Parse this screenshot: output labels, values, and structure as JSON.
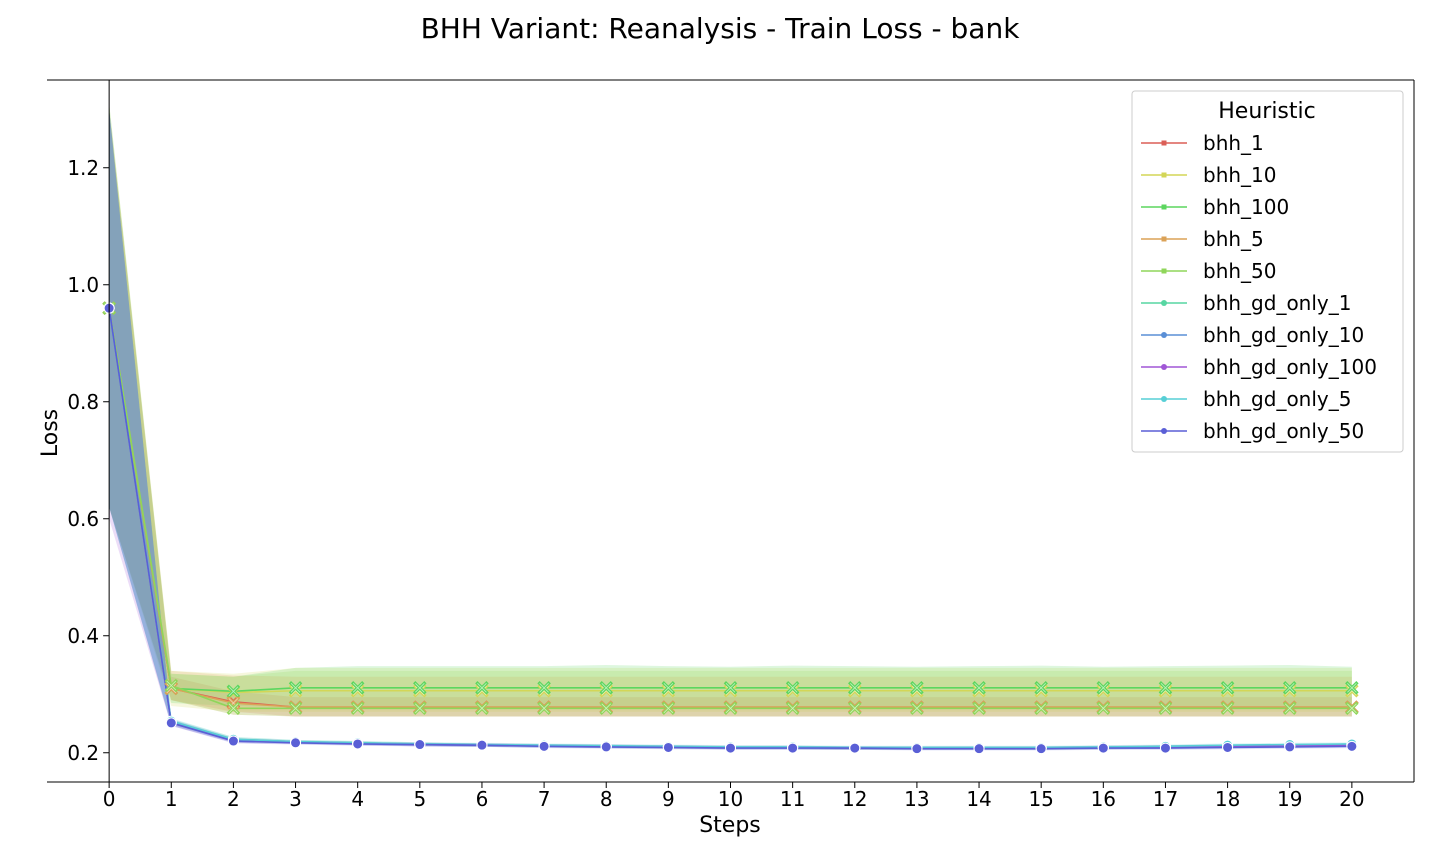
{
  "chart_data": {
    "type": "line",
    "title": "BHH Variant: Reanalysis - Train Loss - bank",
    "xlabel": "Steps",
    "ylabel": "Loss",
    "xlim": [
      -1,
      21
    ],
    "ylim": [
      0.15,
      1.35
    ],
    "x": [
      0,
      1,
      2,
      3,
      4,
      5,
      6,
      7,
      8,
      9,
      10,
      11,
      12,
      13,
      14,
      15,
      16,
      17,
      18,
      19,
      20
    ],
    "x_ticks": [
      "0",
      "1",
      "2",
      "3",
      "4",
      "5",
      "6",
      "7",
      "8",
      "9",
      "10",
      "11",
      "12",
      "13",
      "14",
      "15",
      "16",
      "17",
      "18",
      "19",
      "20"
    ],
    "y_ticks": [
      {
        "value": 0.2,
        "label": "0.2"
      },
      {
        "value": 0.4,
        "label": "0.4"
      },
      {
        "value": 0.6,
        "label": "0.6"
      },
      {
        "value": 0.8,
        "label": "0.8"
      },
      {
        "value": 1.0,
        "label": "1.0"
      },
      {
        "value": 1.2,
        "label": "1.2"
      }
    ],
    "grid": false,
    "legend": {
      "title": "Heuristic",
      "position": "top-right"
    },
    "series": [
      {
        "name": "bhh_1",
        "color": "#db5f57",
        "marker": "x",
        "values": [
          0.96,
          0.31,
          0.287,
          0.278,
          0.278,
          0.278,
          0.278,
          0.278,
          0.278,
          0.278,
          0.278,
          0.278,
          0.278,
          0.278,
          0.278,
          0.278,
          0.278,
          0.278,
          0.278,
          0.278,
          0.278
        ],
        "band_lower": [
          0.62,
          0.29,
          0.27,
          0.262,
          0.262,
          0.262,
          0.262,
          0.262,
          0.262,
          0.262,
          0.262,
          0.262,
          0.262,
          0.262,
          0.262,
          0.262,
          0.262,
          0.262,
          0.262,
          0.262,
          0.262
        ],
        "band_upper": [
          1.3,
          0.33,
          0.305,
          0.295,
          0.295,
          0.295,
          0.295,
          0.295,
          0.295,
          0.295,
          0.295,
          0.295,
          0.295,
          0.295,
          0.295,
          0.295,
          0.295,
          0.295,
          0.295,
          0.295,
          0.295
        ]
      },
      {
        "name": "bhh_10",
        "color": "#d3d657",
        "marker": "x",
        "values": [
          0.96,
          0.31,
          0.303,
          0.306,
          0.306,
          0.306,
          0.306,
          0.306,
          0.306,
          0.306,
          0.306,
          0.306,
          0.306,
          0.306,
          0.306,
          0.306,
          0.306,
          0.306,
          0.306,
          0.306,
          0.306
        ],
        "band_lower": [
          0.62,
          0.28,
          0.27,
          0.27,
          0.27,
          0.27,
          0.27,
          0.27,
          0.27,
          0.27,
          0.27,
          0.27,
          0.27,
          0.27,
          0.27,
          0.27,
          0.27,
          0.27,
          0.27,
          0.27,
          0.27
        ],
        "band_upper": [
          1.31,
          0.34,
          0.335,
          0.345,
          0.345,
          0.345,
          0.345,
          0.345,
          0.345,
          0.345,
          0.345,
          0.345,
          0.345,
          0.345,
          0.345,
          0.345,
          0.345,
          0.345,
          0.345,
          0.345,
          0.345
        ]
      },
      {
        "name": "bhh_100",
        "color": "#5cd65f",
        "marker": "x",
        "values": [
          0.96,
          0.31,
          0.305,
          0.311,
          0.311,
          0.311,
          0.311,
          0.311,
          0.311,
          0.311,
          0.311,
          0.311,
          0.311,
          0.311,
          0.311,
          0.311,
          0.311,
          0.311,
          0.311,
          0.311,
          0.311
        ],
        "band_lower": [
          0.62,
          0.285,
          0.28,
          0.278,
          0.278,
          0.278,
          0.278,
          0.278,
          0.278,
          0.278,
          0.278,
          0.278,
          0.278,
          0.278,
          0.278,
          0.278,
          0.278,
          0.278,
          0.278,
          0.278,
          0.278
        ],
        "band_upper": [
          1.31,
          0.335,
          0.33,
          0.345,
          0.348,
          0.348,
          0.348,
          0.348,
          0.35,
          0.348,
          0.347,
          0.349,
          0.348,
          0.347,
          0.348,
          0.349,
          0.347,
          0.348,
          0.349,
          0.35,
          0.347
        ]
      },
      {
        "name": "bhh_5",
        "color": "#dba257",
        "marker": "x",
        "values": [
          0.96,
          0.31,
          0.285,
          0.278,
          0.278,
          0.278,
          0.278,
          0.278,
          0.278,
          0.278,
          0.278,
          0.278,
          0.278,
          0.278,
          0.278,
          0.278,
          0.278,
          0.278,
          0.278,
          0.278,
          0.278
        ],
        "band_lower": [
          0.62,
          0.29,
          0.265,
          0.262,
          0.262,
          0.262,
          0.262,
          0.262,
          0.262,
          0.262,
          0.262,
          0.262,
          0.262,
          0.262,
          0.262,
          0.262,
          0.262,
          0.262,
          0.262,
          0.262,
          0.262
        ],
        "band_upper": [
          1.3,
          0.34,
          0.332,
          0.33,
          0.33,
          0.33,
          0.33,
          0.33,
          0.33,
          0.33,
          0.33,
          0.33,
          0.33,
          0.33,
          0.33,
          0.33,
          0.33,
          0.33,
          0.33,
          0.33,
          0.33
        ]
      },
      {
        "name": "bhh_50",
        "color": "#8fd65a",
        "marker": "x",
        "values": [
          0.96,
          0.315,
          0.276,
          0.276,
          0.276,
          0.276,
          0.276,
          0.276,
          0.276,
          0.276,
          0.276,
          0.276,
          0.276,
          0.276,
          0.276,
          0.276,
          0.276,
          0.276,
          0.276,
          0.276,
          0.276
        ],
        "band_lower": [
          0.62,
          0.29,
          0.265,
          0.262,
          0.262,
          0.262,
          0.262,
          0.262,
          0.262,
          0.262,
          0.262,
          0.262,
          0.262,
          0.262,
          0.262,
          0.262,
          0.262,
          0.262,
          0.262,
          0.262,
          0.262
        ],
        "band_upper": [
          1.3,
          0.335,
          0.33,
          0.34,
          0.34,
          0.34,
          0.34,
          0.34,
          0.34,
          0.34,
          0.34,
          0.34,
          0.34,
          0.34,
          0.34,
          0.34,
          0.34,
          0.34,
          0.34,
          0.34,
          0.34
        ]
      },
      {
        "name": "bhh_gd_only_1",
        "color": "#57d6a2",
        "marker": "o",
        "values": [
          0.96,
          0.253,
          0.223,
          0.219,
          0.217,
          0.215,
          0.213,
          0.212,
          0.211,
          0.21,
          0.209,
          0.209,
          0.208,
          0.208,
          0.208,
          0.208,
          0.209,
          0.21,
          0.211,
          0.212,
          0.213
        ],
        "band_lower": [
          0.62,
          0.248,
          0.219,
          0.216,
          0.214,
          0.212,
          0.21,
          0.209,
          0.208,
          0.207,
          0.206,
          0.206,
          0.205,
          0.205,
          0.205,
          0.205,
          0.206,
          0.207,
          0.208,
          0.209,
          0.21
        ],
        "band_upper": [
          1.3,
          0.258,
          0.227,
          0.222,
          0.22,
          0.218,
          0.216,
          0.215,
          0.214,
          0.213,
          0.212,
          0.212,
          0.211,
          0.211,
          0.211,
          0.211,
          0.212,
          0.213,
          0.214,
          0.215,
          0.216
        ]
      },
      {
        "name": "bhh_gd_only_10",
        "color": "#5a8fd6",
        "marker": "o",
        "values": [
          0.96,
          0.252,
          0.221,
          0.218,
          0.216,
          0.214,
          0.213,
          0.212,
          0.211,
          0.21,
          0.209,
          0.209,
          0.208,
          0.208,
          0.208,
          0.208,
          0.209,
          0.21,
          0.211,
          0.212,
          0.213
        ],
        "band_lower": [
          0.62,
          0.247,
          0.217,
          0.215,
          0.213,
          0.211,
          0.21,
          0.209,
          0.208,
          0.207,
          0.206,
          0.206,
          0.205,
          0.205,
          0.205,
          0.205,
          0.206,
          0.207,
          0.208,
          0.209,
          0.21
        ],
        "band_upper": [
          1.3,
          0.257,
          0.225,
          0.221,
          0.219,
          0.217,
          0.216,
          0.215,
          0.214,
          0.213,
          0.212,
          0.212,
          0.211,
          0.211,
          0.211,
          0.211,
          0.212,
          0.213,
          0.214,
          0.215,
          0.216
        ]
      },
      {
        "name": "bhh_gd_only_100",
        "color": "#a057d6",
        "marker": "o",
        "values": [
          0.96,
          0.251,
          0.221,
          0.218,
          0.216,
          0.214,
          0.213,
          0.212,
          0.211,
          0.21,
          0.209,
          0.209,
          0.208,
          0.208,
          0.208,
          0.208,
          0.209,
          0.21,
          0.211,
          0.212,
          0.213
        ],
        "band_lower": [
          0.6,
          0.246,
          0.217,
          0.215,
          0.213,
          0.211,
          0.21,
          0.209,
          0.208,
          0.207,
          0.206,
          0.206,
          0.205,
          0.205,
          0.205,
          0.205,
          0.206,
          0.207,
          0.208,
          0.209,
          0.21
        ],
        "band_upper": [
          1.3,
          0.256,
          0.225,
          0.221,
          0.219,
          0.217,
          0.216,
          0.215,
          0.214,
          0.213,
          0.212,
          0.212,
          0.211,
          0.211,
          0.211,
          0.211,
          0.212,
          0.213,
          0.214,
          0.215,
          0.216
        ]
      },
      {
        "name": "bhh_gd_only_5",
        "color": "#57cfd6",
        "marker": "o",
        "values": [
          0.96,
          0.254,
          0.223,
          0.219,
          0.217,
          0.215,
          0.214,
          0.213,
          0.212,
          0.211,
          0.21,
          0.21,
          0.209,
          0.209,
          0.209,
          0.209,
          0.21,
          0.211,
          0.213,
          0.214,
          0.215
        ],
        "band_lower": [
          0.62,
          0.249,
          0.219,
          0.216,
          0.214,
          0.212,
          0.211,
          0.21,
          0.209,
          0.208,
          0.207,
          0.207,
          0.206,
          0.206,
          0.206,
          0.206,
          0.207,
          0.208,
          0.21,
          0.211,
          0.212
        ],
        "band_upper": [
          1.3,
          0.259,
          0.227,
          0.222,
          0.22,
          0.218,
          0.217,
          0.216,
          0.215,
          0.214,
          0.213,
          0.213,
          0.212,
          0.212,
          0.212,
          0.212,
          0.213,
          0.214,
          0.216,
          0.217,
          0.218
        ]
      },
      {
        "name": "bhh_gd_only_50",
        "color": "#5a5fd6",
        "marker": "o",
        "values": [
          0.96,
          0.251,
          0.22,
          0.217,
          0.215,
          0.214,
          0.213,
          0.211,
          0.21,
          0.209,
          0.208,
          0.208,
          0.208,
          0.207,
          0.207,
          0.207,
          0.208,
          0.208,
          0.209,
          0.21,
          0.211
        ],
        "band_lower": [
          0.62,
          0.246,
          0.216,
          0.214,
          0.212,
          0.211,
          0.21,
          0.208,
          0.207,
          0.206,
          0.205,
          0.205,
          0.205,
          0.204,
          0.204,
          0.204,
          0.205,
          0.205,
          0.206,
          0.207,
          0.208
        ],
        "band_upper": [
          1.3,
          0.256,
          0.224,
          0.22,
          0.218,
          0.217,
          0.216,
          0.214,
          0.213,
          0.212,
          0.211,
          0.211,
          0.211,
          0.21,
          0.21,
          0.21,
          0.211,
          0.211,
          0.212,
          0.213,
          0.214
        ]
      }
    ]
  }
}
